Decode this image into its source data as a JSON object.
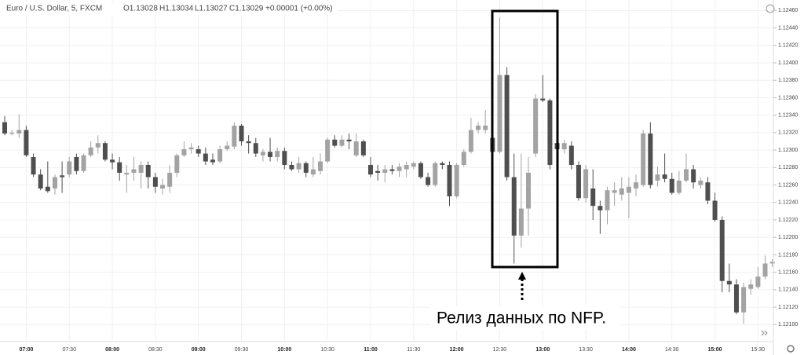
{
  "chart_data": {
    "type": "candlestick",
    "title": "Euro / U.S. Dollar, 5, FXCM",
    "header_values": [
      "O1.13028",
      "H1.13034",
      "L1.13027",
      "C1.13029",
      "+0.00001 (+0.00%)"
    ],
    "annotation": "Релиз данных по NFP.",
    "up_color": "#a3a3a3",
    "down_color": "#4f4f4f",
    "grid": true,
    "categories": [
      null,
      null,
      null,
      "07:00",
      null,
      null,
      null,
      null,
      null,
      "07:30",
      null,
      null,
      null,
      null,
      null,
      "08:00",
      null,
      null,
      null,
      null,
      null,
      "08:30",
      null,
      null,
      null,
      null,
      null,
      "09:00",
      null,
      null,
      null,
      null,
      null,
      "09:30",
      null,
      null,
      null,
      null,
      null,
      "10:00",
      null,
      null,
      null,
      null,
      null,
      "10:30",
      null,
      null,
      null,
      null,
      null,
      "11:00",
      null,
      null,
      null,
      null,
      null,
      "11:30",
      null,
      null,
      null,
      null,
      null,
      "12:00",
      null,
      null,
      null,
      null,
      null,
      "12:30",
      null,
      null,
      null,
      null,
      null,
      "13:00",
      null,
      null,
      null,
      null,
      null,
      "13:30",
      null,
      null,
      null,
      null,
      null,
      "14:00",
      null,
      null,
      null,
      null,
      null,
      "14:30",
      null,
      null,
      null,
      null,
      null,
      "15:00",
      null,
      null,
      null,
      null,
      null,
      "15:30",
      null,
      null
    ],
    "open": [
      1.12332,
      1.12319,
      1.12319,
      1.12323,
      1.12292,
      1.12272,
      1.12258,
      1.12256,
      1.12271,
      1.12272,
      1.12292,
      1.12276,
      1.12294,
      1.12303,
      1.12308,
      1.12289,
      1.12286,
      1.12272,
      1.12274,
      1.12274,
      1.12283,
      1.12269,
      1.12256,
      1.12258,
      1.12274,
      1.12294,
      1.12301,
      1.12301,
      1.12296,
      1.12289,
      1.12287,
      1.12301,
      1.12304,
      1.12328,
      1.1231,
      1.12308,
      1.12294,
      1.12298,
      1.12292,
      1.12299,
      1.12283,
      1.12278,
      1.12285,
      1.12272,
      1.12276,
      1.12287,
      1.12312,
      1.12305,
      1.12312,
      1.12294,
      1.1231,
      1.12283,
      1.12276,
      1.12274,
      1.12278,
      1.12276,
      1.12278,
      1.12281,
      1.12285,
      1.12269,
      1.1226,
      1.12285,
      1.12283,
      1.12247,
      1.12283,
      1.12298,
      1.12323,
      1.12323,
      1.12314,
      1.12298,
      1.12386,
      1.12269,
      1.12202,
      1.12233,
      1.12296,
      1.12359,
      1.12357,
      1.12308,
      1.12301,
      1.12305,
      1.12283,
      1.12245,
      1.12256,
      1.12236,
      1.12231,
      1.12251,
      1.12249,
      1.12251,
      1.12256,
      1.1226,
      1.12319,
      1.12265,
      1.12272,
      1.12267,
      1.12251,
      1.12265,
      1.12278,
      1.1226,
      1.12263,
      1.12242,
      1.1222,
      1.1215,
      1.12146,
      1.12114,
      1.12141,
      1.12143,
      1.12155,
      1.1217
    ],
    "high": [
      1.12339,
      1.12323,
      1.12341,
      1.12328,
      1.12296,
      1.12278,
      1.12287,
      1.12272,
      1.12287,
      1.12292,
      1.12296,
      1.12296,
      1.1231,
      1.12317,
      1.1231,
      1.12296,
      1.12292,
      1.12283,
      1.12292,
      1.12287,
      1.12287,
      1.12274,
      1.12267,
      1.12283,
      1.12296,
      1.1231,
      1.12308,
      1.12305,
      1.12303,
      1.12296,
      1.12305,
      1.1231,
      1.12332,
      1.1233,
      1.12317,
      1.12314,
      1.12301,
      1.12314,
      1.12303,
      1.12303,
      1.12287,
      1.12292,
      1.12287,
      1.12292,
      1.12296,
      1.12314,
      1.12317,
      1.12317,
      1.12319,
      1.12319,
      1.12312,
      1.12292,
      1.12283,
      1.12283,
      1.12283,
      1.12285,
      1.12287,
      1.12287,
      1.12287,
      1.12274,
      1.12287,
      1.12287,
      1.12287,
      1.12285,
      1.12301,
      1.12337,
      1.12332,
      1.12346,
      1.12323,
      1.12452,
      1.12395,
      1.12296,
      1.12296,
      1.12292,
      1.12364,
      1.12386,
      1.12359,
      1.12314,
      1.12312,
      1.1231,
      1.12287,
      1.12283,
      1.12278,
      1.12242,
      1.12258,
      1.12263,
      1.12269,
      1.12269,
      1.12272,
      1.12323,
      1.12332,
      1.12281,
      1.12296,
      1.12274,
      1.12276,
      1.12296,
      1.12283,
      1.12269,
      1.12269,
      1.12251,
      1.12224,
      1.1217,
      1.12152,
      1.12148,
      1.12152,
      1.12166,
      1.12179,
      1.12175
    ],
    "low": [
      1.12317,
      1.12317,
      1.12314,
      1.12292,
      1.12269,
      1.12254,
      1.12251,
      1.12249,
      1.12251,
      1.12269,
      1.12272,
      1.12274,
      1.12292,
      1.12296,
      1.12287,
      1.12278,
      1.12265,
      1.12251,
      1.12265,
      1.12256,
      1.12256,
      1.12251,
      1.12249,
      1.12251,
      1.12269,
      1.12292,
      1.12296,
      1.12292,
      1.12283,
      1.12283,
      1.12285,
      1.12299,
      1.12301,
      1.12305,
      1.12296,
      1.12292,
      1.12287,
      1.12287,
      1.12287,
      1.12278,
      1.12276,
      1.12274,
      1.12269,
      1.12269,
      1.12272,
      1.12285,
      1.12303,
      1.12303,
      1.12301,
      1.12292,
      1.12292,
      1.12269,
      1.12265,
      1.12263,
      1.12272,
      1.12269,
      1.12269,
      1.12278,
      1.12267,
      1.12258,
      1.12258,
      1.12278,
      1.12236,
      1.12245,
      1.12281,
      1.12296,
      1.12319,
      1.12319,
      1.12292,
      1.12296,
      1.12265,
      1.1217,
      1.12188,
      1.12202,
      1.12292,
      1.12355,
      1.12278,
      1.12292,
      1.12296,
      1.12278,
      1.12242,
      1.1224,
      1.1222,
      1.12204,
      1.12215,
      1.12236,
      1.12242,
      1.12222,
      1.12247,
      1.12258,
      1.12256,
      1.12258,
      1.12263,
      1.12249,
      1.12249,
      1.12263,
      1.12256,
      1.12256,
      1.12238,
      1.12218,
      1.12137,
      1.12137,
      1.12112,
      1.12101,
      1.12134,
      1.12141,
      1.12152,
      1.12166
    ],
    "close": [
      1.12319,
      1.1232,
      1.12323,
      1.12294,
      1.12272,
      1.12256,
      1.12253,
      1.12269,
      1.12269,
      1.12287,
      1.12276,
      1.12294,
      1.12303,
      1.12308,
      1.12289,
      1.12286,
      1.12274,
      1.12274,
      1.12278,
      1.12283,
      1.12269,
      1.12258,
      1.1226,
      1.12274,
      1.12294,
      1.12301,
      1.12303,
      1.12296,
      1.12287,
      1.12286,
      1.12301,
      1.12305,
      1.12328,
      1.1231,
      1.12308,
      1.12296,
      1.12298,
      1.12292,
      1.12299,
      1.12283,
      1.12278,
      1.12285,
      1.12274,
      1.12278,
      1.12287,
      1.12312,
      1.12305,
      1.12312,
      1.1231,
      1.1231,
      1.12294,
      1.12272,
      1.12274,
      1.12278,
      1.12276,
      1.12281,
      1.12283,
      1.12285,
      1.12269,
      1.1226,
      1.12285,
      1.12283,
      1.12247,
      1.12283,
      1.12298,
      1.12323,
      1.12328,
      1.12328,
      1.12298,
      1.12386,
      1.12269,
      1.12202,
      1.12233,
      1.12274,
      1.12359,
      1.12357,
      1.12283,
      1.12301,
      1.12308,
      1.12283,
      1.12245,
      1.12278,
      1.12236,
      1.12231,
      1.12254,
      1.12254,
      1.12256,
      1.12258,
      1.12263,
      1.12319,
      1.1226,
      1.12272,
      1.12267,
      1.12251,
      1.12265,
      1.12278,
      1.12263,
      1.12265,
      1.12242,
      1.1222,
      1.1215,
      1.12146,
      1.12114,
      1.12143,
      1.12146,
      1.12155,
      1.1217,
      1.12172
    ],
    "ylim": [
      1.12081,
      1.12472
    ],
    "yticks": [
      {
        "value": 1.121,
        "label": "1.12100"
      },
      {
        "value": 1.1212,
        "label": "1.12120"
      },
      {
        "value": 1.1214,
        "label": "1.12140"
      },
      {
        "value": 1.1216,
        "label": "1.12160"
      },
      {
        "value": 1.1218,
        "label": "1.12180"
      },
      {
        "value": 1.122,
        "label": "1.12200"
      },
      {
        "value": 1.1222,
        "label": "1.12220"
      },
      {
        "value": 1.1224,
        "label": "1.12240"
      },
      {
        "value": 1.1226,
        "label": "1.12260"
      },
      {
        "value": 1.1228,
        "label": "1.12280"
      },
      {
        "value": 1.123,
        "label": "1.12300"
      },
      {
        "value": 1.1232,
        "label": "1.12320"
      },
      {
        "value": 1.1234,
        "label": "1.12340"
      },
      {
        "value": 1.1236,
        "label": "1.12360"
      },
      {
        "value": 1.1238,
        "label": "1.12380"
      },
      {
        "value": 1.124,
        "label": "1.12400"
      },
      {
        "value": 1.1242,
        "label": "1.12420"
      },
      {
        "value": 1.1244,
        "label": "1.12440"
      },
      {
        "value": 1.1246,
        "label": "1.12460"
      }
    ]
  }
}
